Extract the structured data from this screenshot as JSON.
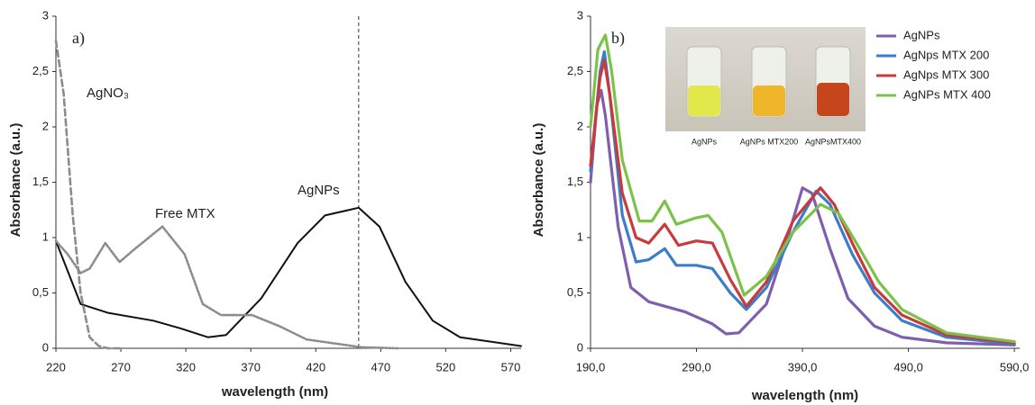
{
  "chart_data": [
    {
      "type": "line",
      "xlabel": "wavelength (nm)",
      "ylabel": "Absorbance (a.u.)",
      "xlim": [
        220,
        578
      ],
      "ylim": [
        0,
        3
      ],
      "xticks": [
        220,
        270,
        320,
        370,
        420,
        470,
        520,
        570
      ],
      "yticks": [
        0,
        {
          "value": 0.5,
          "label": "0,5"
        },
        1,
        {
          "value": 1.5,
          "label": "1,5"
        },
        2,
        {
          "value": 2.5,
          "label": "2,5"
        },
        3
      ],
      "vline": 453,
      "annotations": [
        "a)",
        "AgNO₃",
        "Free MTX",
        "AgNPs"
      ],
      "series": [
        {
          "color": "#111111",
          "style": "solid",
          "x": [
            220,
            239,
            260,
            295,
            316,
            337,
            351,
            378,
            406,
            427,
            453,
            469,
            489,
            510,
            531,
            578
          ],
          "values": [
            0.97,
            0.4,
            0.32,
            0.25,
            0.18,
            0.1,
            0.12,
            0.45,
            0.95,
            1.2,
            1.27,
            1.1,
            0.6,
            0.25,
            0.1,
            0.02
          ]
        },
        {
          "color": "#8c8c8c",
          "style": "dotted",
          "x": [
            220,
            229,
            239,
            246,
            258,
            269,
            281,
            302,
            319,
            333,
            347,
            371,
            392,
            413,
            455,
            483
          ],
          "values": [
            0.97,
            0.85,
            0.68,
            0.72,
            0.95,
            0.78,
            0.9,
            1.1,
            0.85,
            0.4,
            0.3,
            0.3,
            0.2,
            0.08,
            0.01,
            0
          ]
        },
        {
          "color": "#8c8c8c",
          "style": "dashed",
          "x": [
            220,
            226,
            233,
            239,
            246,
            253,
            260,
            270
          ],
          "values": [
            2.78,
            2.3,
            1.2,
            0.5,
            0.1,
            0.02,
            0,
            0
          ]
        }
      ]
    },
    {
      "type": "line",
      "xlabel": "wavelength (nm)",
      "ylabel": "Absorbance (a.u.)",
      "xlim": [
        190,
        595
      ],
      "ylim": [
        0,
        3
      ],
      "xticks": [
        {
          "value": 190,
          "label": "190,0"
        },
        {
          "value": 290,
          "label": "290,0"
        },
        {
          "value": 390,
          "label": "390,0"
        },
        {
          "value": 490,
          "label": "490,0"
        },
        {
          "value": 590,
          "label": "590,0"
        }
      ],
      "yticks": [
        0,
        {
          "value": 0.5,
          "label": "0,5"
        },
        1,
        {
          "value": 1.5,
          "label": "1,5"
        },
        2,
        {
          "value": 2.5,
          "label": "2,5"
        },
        3
      ],
      "legend": "top-right",
      "annotations": [
        "b)"
      ],
      "inset_labels": [
        "AgNPs",
        "AgNPs MTX200",
        "AgNPsMTX400"
      ],
      "series": [
        {
          "name": "AgNPs",
          "color": "#7e5fae",
          "style": "solid",
          "x": [
            190,
            196,
            200,
            204,
            216,
            228,
            245,
            279,
            305,
            318,
            330,
            356,
            373,
            390,
            399,
            416,
            433,
            458,
            484,
            526,
            590
          ],
          "values": [
            1.5,
            2.2,
            2.33,
            2.1,
            1.1,
            0.55,
            0.42,
            0.33,
            0.22,
            0.13,
            0.14,
            0.4,
            0.9,
            1.45,
            1.4,
            0.9,
            0.45,
            0.2,
            0.1,
            0.05,
            0.03
          ]
        },
        {
          "name": "AgNps MTX 200",
          "color": "#3b7dc8",
          "style": "solid",
          "x": [
            190,
            199,
            203,
            208,
            220,
            233,
            245,
            260,
            271,
            290,
            305,
            322,
            337,
            356,
            381,
            403,
            416,
            437,
            458,
            484,
            526,
            590
          ],
          "values": [
            1.6,
            2.5,
            2.68,
            2.3,
            1.2,
            0.78,
            0.8,
            0.9,
            0.75,
            0.75,
            0.72,
            0.5,
            0.35,
            0.55,
            1.05,
            1.42,
            1.3,
            0.85,
            0.5,
            0.25,
            0.1,
            0.04
          ]
        },
        {
          "name": "AgNps MTX 300",
          "color": "#c83a3c",
          "style": "solid",
          "x": [
            190,
            199,
            203,
            208,
            220,
            233,
            245,
            260,
            273,
            290,
            305,
            322,
            337,
            356,
            381,
            407,
            420,
            437,
            458,
            484,
            526,
            590
          ],
          "values": [
            1.65,
            2.45,
            2.6,
            2.3,
            1.4,
            1.0,
            0.95,
            1.12,
            0.93,
            0.97,
            0.95,
            0.62,
            0.38,
            0.6,
            1.15,
            1.45,
            1.3,
            0.95,
            0.55,
            0.3,
            0.12,
            0.05
          ]
        },
        {
          "name": "AgNPs MTX 400",
          "color": "#7cc24a",
          "style": "solid",
          "x": [
            190,
            197,
            204,
            210,
            220,
            236,
            248,
            260,
            271,
            290,
            301,
            314,
            335,
            356,
            381,
            407,
            424,
            441,
            462,
            484,
            526,
            590
          ],
          "values": [
            2.0,
            2.7,
            2.83,
            2.5,
            1.7,
            1.15,
            1.15,
            1.33,
            1.12,
            1.18,
            1.2,
            1.05,
            0.48,
            0.65,
            1.05,
            1.3,
            1.22,
            0.95,
            0.6,
            0.35,
            0.14,
            0.06
          ]
        }
      ]
    }
  ]
}
